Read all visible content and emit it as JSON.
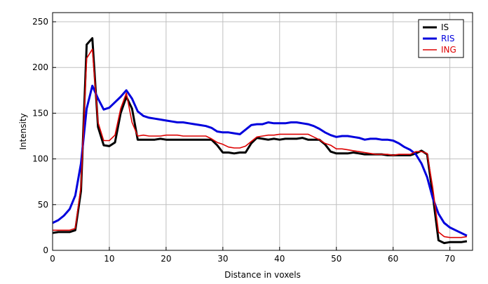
{
  "chart_data": {
    "type": "line",
    "title": "",
    "xlabel": "Distance in voxels",
    "ylabel": "Intensity",
    "xlim": [
      0,
      74
    ],
    "ylim": [
      0,
      260
    ],
    "xticks": [
      0,
      10,
      20,
      30,
      40,
      50,
      60,
      70
    ],
    "yticks": [
      0,
      50,
      100,
      150,
      200,
      250
    ],
    "grid": true,
    "legend_position": "top-right",
    "x": [
      0,
      1,
      2,
      3,
      4,
      5,
      6,
      7,
      8,
      9,
      10,
      11,
      12,
      13,
      14,
      15,
      16,
      17,
      18,
      19,
      20,
      21,
      22,
      23,
      24,
      25,
      26,
      27,
      28,
      29,
      30,
      31,
      32,
      33,
      34,
      35,
      36,
      37,
      38,
      39,
      40,
      41,
      42,
      43,
      44,
      45,
      46,
      47,
      48,
      49,
      50,
      51,
      52,
      53,
      54,
      55,
      56,
      57,
      58,
      59,
      60,
      61,
      62,
      63,
      64,
      65,
      66,
      67,
      68,
      69,
      70,
      71,
      72,
      73
    ],
    "series": [
      {
        "name": "IS",
        "color": "#000000",
        "values": [
          19,
          20,
          20,
          20,
          22,
          65,
          225,
          232,
          135,
          115,
          114,
          118,
          150,
          168,
          155,
          121,
          121,
          121,
          121,
          122,
          121,
          121,
          121,
          121,
          121,
          121,
          121,
          121,
          121,
          115,
          107,
          107,
          106,
          107,
          107,
          117,
          123,
          122,
          121,
          122,
          121,
          122,
          122,
          122,
          123,
          121,
          121,
          121,
          116,
          108,
          106,
          106,
          106,
          107,
          106,
          105,
          105,
          105,
          105,
          104,
          104,
          104,
          104,
          104,
          106,
          109,
          105,
          60,
          11,
          8,
          9,
          9,
          9,
          10
        ]
      },
      {
        "name": "RIS",
        "color": "#0000dd",
        "values": [
          30,
          33,
          38,
          45,
          60,
          95,
          155,
          180,
          166,
          154,
          156,
          162,
          168,
          175,
          166,
          152,
          147,
          145,
          144,
          143,
          142,
          141,
          140,
          140,
          139,
          138,
          137,
          136,
          134,
          130,
          129,
          129,
          128,
          127,
          132,
          137,
          138,
          138,
          140,
          139,
          139,
          139,
          140,
          140,
          139,
          138,
          136,
          133,
          129,
          126,
          124,
          125,
          125,
          124,
          123,
          121,
          122,
          122,
          121,
          121,
          120,
          117,
          113,
          110,
          105,
          95,
          80,
          57,
          40,
          30,
          25,
          22,
          19,
          16
        ]
      },
      {
        "name": "ING",
        "color": "#dd0000",
        "values": [
          22,
          22,
          22,
          22,
          24,
          70,
          210,
          220,
          140,
          120,
          120,
          126,
          155,
          172,
          140,
          125,
          126,
          125,
          125,
          125,
          126,
          126,
          126,
          125,
          125,
          125,
          125,
          125,
          122,
          118,
          116,
          113,
          112,
          112,
          114,
          119,
          124,
          125,
          126,
          126,
          127,
          127,
          127,
          127,
          127,
          127,
          124,
          121,
          117,
          115,
          111,
          111,
          110,
          109,
          108,
          107,
          106,
          105,
          105,
          105,
          104,
          105,
          105,
          105,
          108,
          108,
          106,
          68,
          20,
          15,
          14,
          14,
          14,
          15
        ]
      }
    ]
  }
}
